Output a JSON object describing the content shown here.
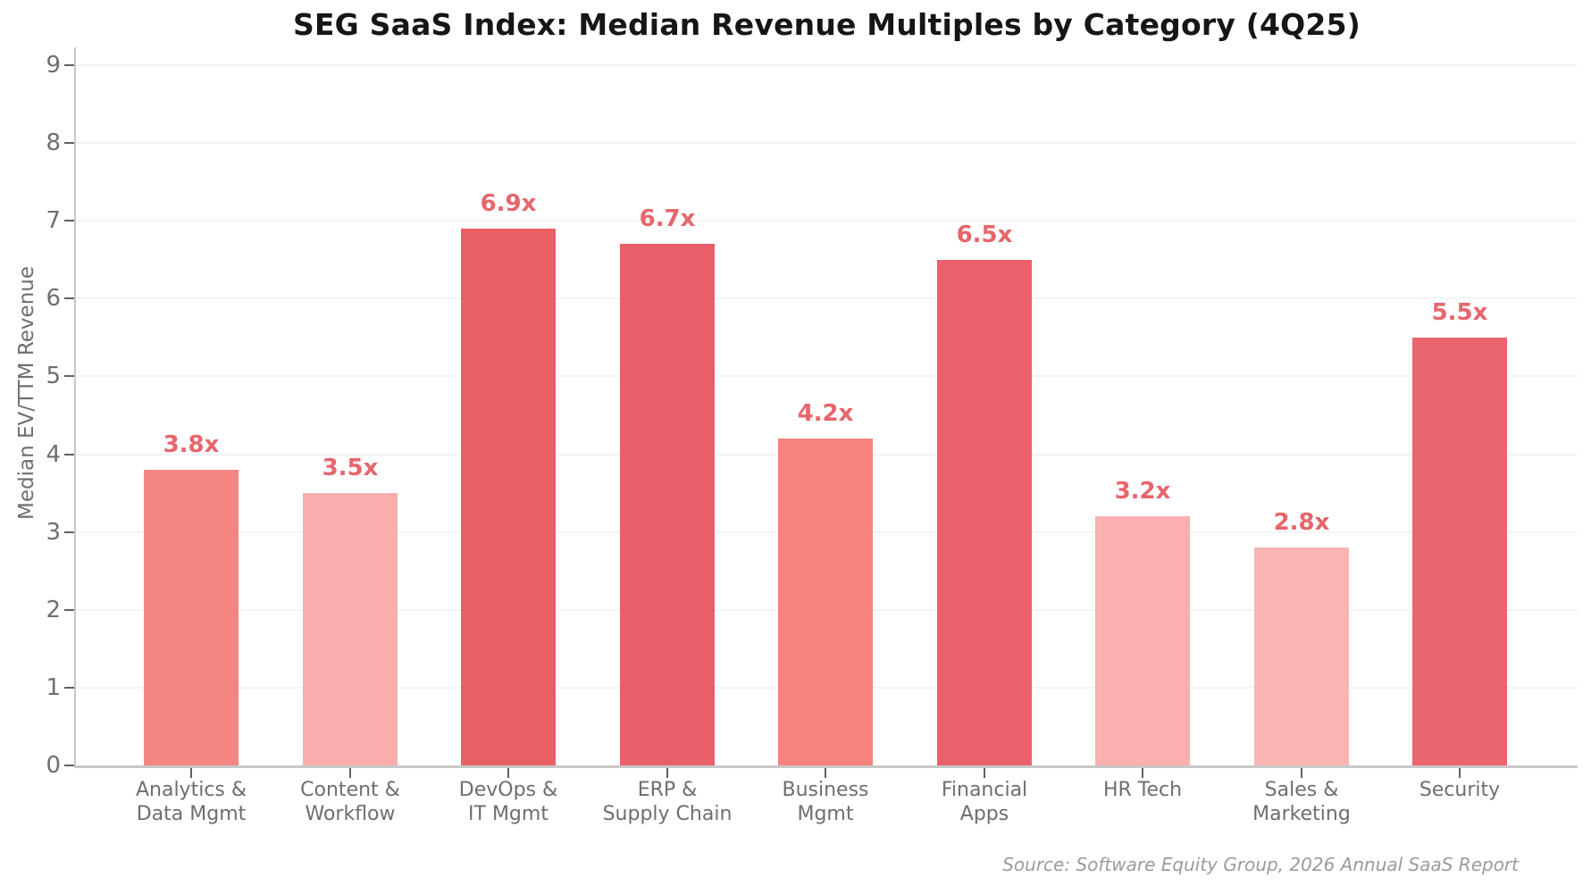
{
  "title": "SEG SaaS Index: Median Revenue Multiples by Category (4Q25)",
  "source_note": "Source: Software Equity Group, 2026 Annual SaaS Report",
  "chart_data": {
    "type": "bar",
    "title": "SEG SaaS Index: Median Revenue Multiples by Category (4Q25)",
    "xlabel": "",
    "ylabel": "Median EV/TTM Revenue",
    "ylim": [
      0,
      9
    ],
    "yticks": [
      0,
      1,
      2,
      3,
      4,
      5,
      6,
      7,
      8,
      9
    ],
    "grid": true,
    "legend": "none",
    "categories": [
      [
        "Analytics &",
        "Data Mgmt"
      ],
      [
        "Content &",
        "Workflow"
      ],
      [
        "DevOps &",
        "IT Mgmt"
      ],
      [
        "ERP &",
        "Supply Chain"
      ],
      [
        "Business",
        "Mgmt"
      ],
      [
        "Financial",
        "Apps"
      ],
      [
        "HR Tech"
      ],
      [
        "Sales &",
        "Marketing"
      ],
      [
        "Security"
      ]
    ],
    "values": [
      3.8,
      3.5,
      6.9,
      6.7,
      4.2,
      6.5,
      3.2,
      2.8,
      5.5
    ],
    "value_labels": [
      "3.8x",
      "3.5x",
      "6.9x",
      "6.7x",
      "4.2x",
      "6.5x",
      "3.2x",
      "2.8x",
      "5.5x"
    ],
    "bar_colors": [
      "#F58580",
      "#F9AEAD",
      "#E85F66",
      "#E9606A",
      "#F5837E",
      "#EA616B",
      "#F9B0AE",
      "#FAB5B3",
      "#EA656F"
    ],
    "value_label_color": "#E8656C",
    "grid_color": "#f4f4f4",
    "spine_color": "#c8c8c8",
    "tick_mark_color": "#606060",
    "tick_text_color": "#6e6e6e",
    "title_color": "#161616",
    "source_color": "#9b9b9b",
    "background_color": "#ffffff"
  }
}
